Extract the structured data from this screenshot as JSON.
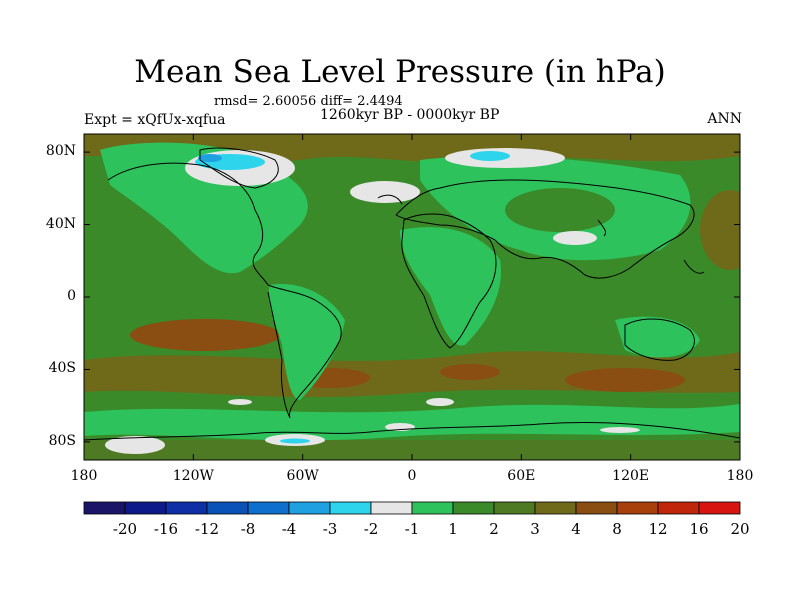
{
  "title": "Mean Sea Level Pressure (in hPa)",
  "stats": "rmsd= 2.60056 diff= 2.4494",
  "period": "1260kyr BP - 0000kyr BP",
  "experiment": "Expt = xQfUx-xqfua",
  "season": "ANN",
  "map": {
    "projection": "cylindrical equidistant",
    "lon_range": [
      -180,
      180
    ],
    "lat_range": [
      -90,
      90
    ],
    "lat_ticks": [
      {
        "value": 80,
        "label": "80N"
      },
      {
        "value": 40,
        "label": "40N"
      },
      {
        "value": 0,
        "label": "0"
      },
      {
        "value": -40,
        "label": "40S"
      },
      {
        "value": -80,
        "label": "80S"
      }
    ],
    "lon_ticks": [
      {
        "value": -180,
        "label": "180"
      },
      {
        "value": -120,
        "label": "120W"
      },
      {
        "value": -60,
        "label": "60W"
      },
      {
        "value": 0,
        "label": "0"
      },
      {
        "value": 60,
        "label": "60E"
      },
      {
        "value": 120,
        "label": "120E"
      },
      {
        "value": 180,
        "label": "180"
      }
    ]
  },
  "colorbar": {
    "colors": [
      "#1a1566",
      "#0d1a8a",
      "#0e2fa6",
      "#0a52b8",
      "#0e6fcc",
      "#1fa0e0",
      "#2dd4ec",
      "#e6e6e6",
      "#2ec25c",
      "#3a8a2a",
      "#4e7a24",
      "#6e6a1a",
      "#8a4e12",
      "#a8400c",
      "#c0260a",
      "#d81410"
    ],
    "labels": [
      "-20",
      "-16",
      "-12",
      "-8",
      "-4",
      "-3",
      "-2",
      "-1",
      "1",
      "2",
      "3",
      "4",
      "8",
      "12",
      "16",
      "20"
    ]
  }
}
